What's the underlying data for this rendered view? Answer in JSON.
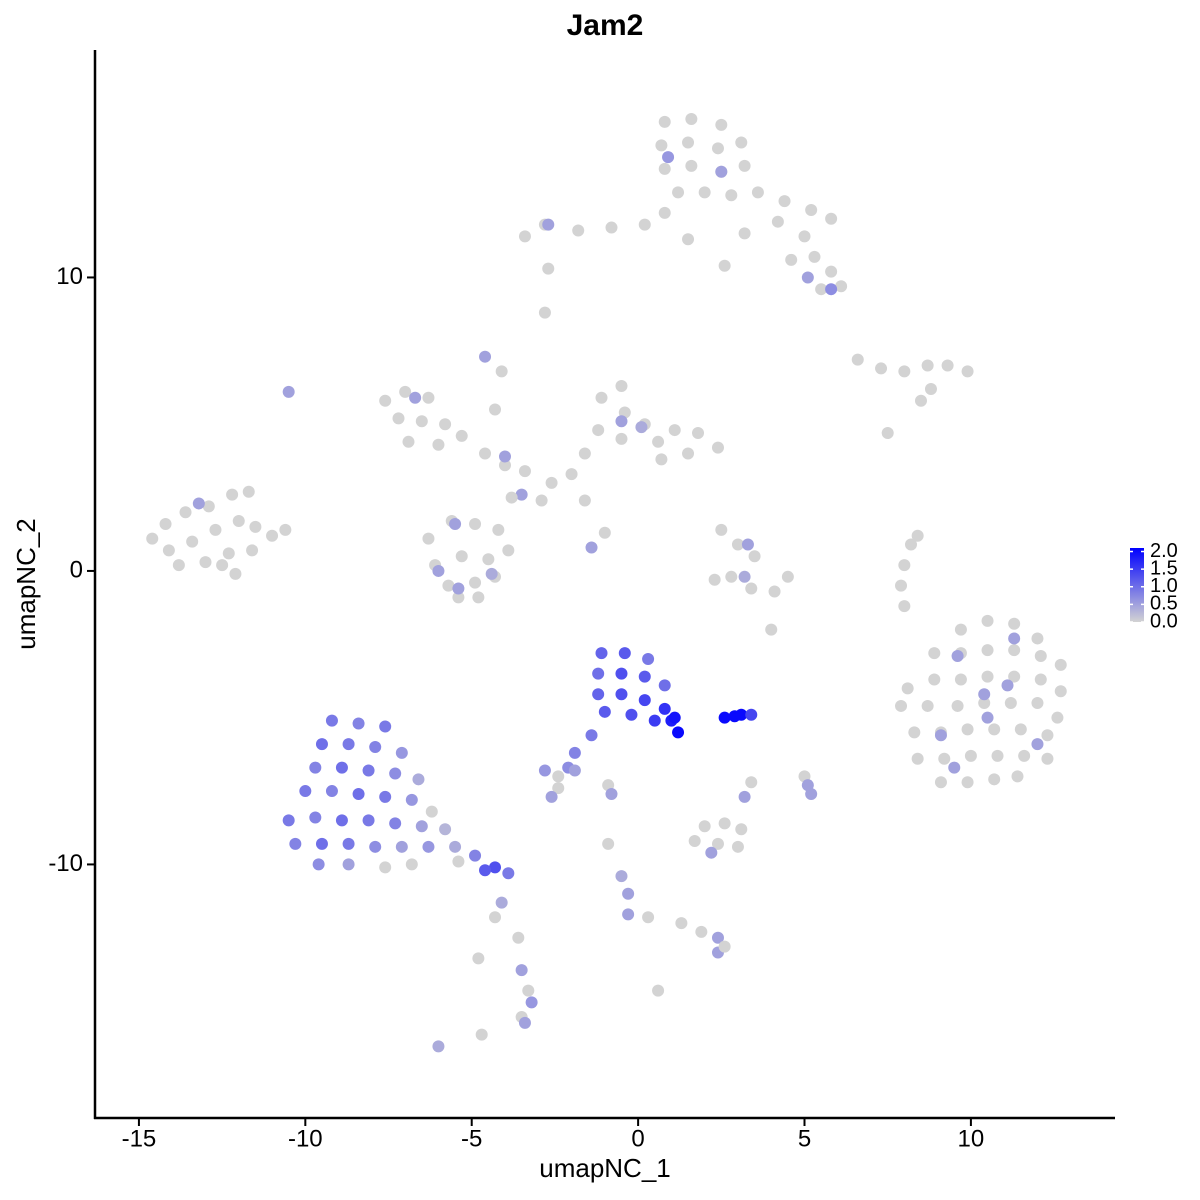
{
  "chart_data": {
    "type": "scatter",
    "title": "Jam2",
    "x_label": "umapNC_1",
    "y_label": "umapNC_2",
    "xlim": [
      -16.32,
      14.33
    ],
    "ylim": [
      -18.64,
      17.75
    ],
    "xticks": [
      -15,
      -10,
      -5,
      0,
      5,
      10
    ],
    "yticks": [
      -10,
      0,
      10
    ],
    "color_low": "#d3d3d3",
    "color_high": "#0000ff",
    "colorbar": {
      "lim": [
        0,
        2.1
      ],
      "ticks": [
        {
          "value": 0,
          "label": "0.0"
        },
        {
          "value": 0.5,
          "label": "0.5"
        },
        {
          "value": 1,
          "label": "1.0"
        },
        {
          "value": 1.5,
          "label": "1.5"
        },
        {
          "value": 2,
          "label": "2.0"
        }
      ]
    },
    "x": [
      0.8,
      1.6,
      2.5,
      3.1,
      0.7,
      1.5,
      2.4,
      3.2,
      0.8,
      1.6,
      2.5,
      1.2,
      2.0,
      2.8,
      3.6,
      4.4,
      5.2,
      5.8,
      4.2,
      5.0,
      5.3,
      5.8,
      6.1,
      5.5,
      4.6,
      0.8,
      0.2,
      -0.8,
      -1.8,
      -2.8,
      -3.4,
      -2.7,
      -2.8,
      1.5,
      2.6,
      3.2,
      0.9,
      2.5,
      -2.7,
      5.1,
      5.8,
      -7.6,
      -7.0,
      -6.3,
      -7.2,
      -6.5,
      -5.8,
      -6.9,
      -6.0,
      -5.3,
      -4.6,
      -4.0,
      -3.4,
      -4.1,
      -4.3,
      -6.7,
      -4.0,
      -4.6,
      -2.6,
      -2.9,
      -2.0,
      -1.6,
      -1.2,
      -1.1,
      -0.5,
      -0.4,
      0.2,
      -0.5,
      0.6,
      1.1,
      1.8,
      2.4,
      1.5,
      0.7,
      -1.6,
      -1.0,
      -0.5,
      0.1,
      -3.5,
      -1.4,
      -6.3,
      -5.6,
      -4.9,
      -4.2,
      -6.1,
      -5.3,
      -4.5,
      -3.9,
      -5.7,
      -4.9,
      -4.3,
      -5.4,
      -4.8,
      -3.8,
      -5.5,
      -5.4,
      -4.4,
      -6.0,
      -14.6,
      -14.2,
      -13.6,
      -12.9,
      -12.2,
      -11.7,
      -14.1,
      -13.4,
      -12.7,
      -12.0,
      -11.5,
      -11.0,
      -10.6,
      -13.8,
      -13.0,
      -12.3,
      -11.6,
      -12.1,
      -12.5,
      -13.2,
      -10.5,
      6.6,
      7.3,
      8.0,
      8.7,
      9.3,
      9.9,
      8.8,
      7.5,
      8.5,
      2.5,
      3.0,
      3.5,
      2.8,
      3.4,
      4.1,
      4.5,
      2.3,
      3.3,
      3.2,
      8.2,
      8.0,
      7.9,
      8.0,
      8.4,
      9.7,
      10.5,
      11.3,
      12.0,
      8.9,
      9.7,
      10.5,
      11.3,
      12.1,
      12.7,
      8.1,
      8.9,
      9.7,
      10.5,
      11.3,
      12.1,
      12.7,
      7.9,
      8.7,
      9.6,
      10.4,
      11.2,
      12.0,
      12.6,
      8.3,
      9.1,
      9.9,
      10.7,
      11.5,
      12.3,
      8.4,
      9.2,
      10.0,
      10.8,
      11.6,
      12.3,
      9.1,
      9.9,
      10.7,
      11.4,
      11.3,
      9.6,
      10.4,
      10.5,
      11.1,
      9.1,
      12.0,
      9.5,
      -9.2,
      -8.4,
      -7.6,
      -9.5,
      -8.7,
      -7.9,
      -7.1,
      -9.7,
      -8.9,
      -8.1,
      -7.3,
      -6.6,
      -10.0,
      -9.2,
      -8.4,
      -7.6,
      -6.8,
      -10.5,
      -9.7,
      -8.9,
      -8.1,
      -7.3,
      -6.5,
      -5.8,
      -10.3,
      -9.5,
      -8.7,
      -7.9,
      -7.1,
      -6.3,
      -5.5,
      -4.9,
      -4.3,
      -3.9,
      -4.6,
      -9.6,
      -8.7,
      -7.6,
      -6.8,
      -6.2,
      -5.4,
      -4.1,
      -4.3,
      -3.6,
      -3.5,
      -3.3,
      -3.2,
      -3.5,
      -3.4,
      -6.0,
      -4.7,
      -1.1,
      -0.4,
      0.3,
      -1.2,
      -0.5,
      0.2,
      0.8,
      -1.2,
      -0.5,
      0.2,
      0.8,
      -1.0,
      -0.2,
      0.5,
      1.0,
      1.2,
      1.1,
      -1.4,
      -1.9,
      -2.1,
      -2.4,
      2.6,
      2.9,
      3.1,
      3.4,
      -2.8,
      -2.4,
      -1.9,
      -2.6,
      -0.9,
      -0.8,
      5.0,
      5.1,
      5.2,
      3.4,
      3.2,
      4.0,
      2.0,
      2.6,
      3.1,
      1.7,
      2.4,
      3.0,
      2.2,
      -0.9,
      -0.5,
      -0.3,
      -0.3,
      0.3,
      1.3,
      1.9,
      2.4,
      2.4,
      2.6,
      0.6,
      -4.8
    ],
    "y": [
      15.3,
      15.4,
      15.2,
      14.6,
      14.5,
      14.6,
      14.4,
      13.8,
      13.7,
      13.8,
      13.6,
      12.9,
      12.9,
      12.8,
      12.9,
      12.6,
      12.3,
      12.0,
      11.9,
      11.4,
      10.7,
      10.2,
      9.7,
      9.6,
      10.6,
      12.2,
      11.8,
      11.7,
      11.6,
      11.8,
      11.4,
      10.3,
      8.8,
      11.3,
      10.4,
      11.5,
      14.1,
      13.6,
      11.8,
      10.0,
      9.6,
      5.8,
      6.1,
      5.9,
      5.2,
      5.1,
      5.0,
      4.4,
      4.3,
      4.6,
      4.0,
      3.6,
      3.4,
      6.8,
      5.5,
      5.9,
      3.9,
      7.3,
      3.0,
      2.4,
      3.3,
      4.0,
      4.8,
      5.9,
      6.3,
      5.4,
      5.0,
      4.5,
      4.4,
      4.8,
      4.7,
      4.2,
      4.0,
      3.8,
      2.4,
      1.3,
      5.1,
      4.9,
      2.6,
      0.8,
      1.1,
      1.7,
      1.6,
      1.4,
      0.2,
      0.5,
      0.4,
      0.7,
      -0.5,
      -0.4,
      -0.2,
      -0.9,
      -0.9,
      2.5,
      1.6,
      -0.6,
      -0.1,
      0.0,
      1.1,
      1.6,
      2.0,
      2.2,
      2.6,
      2.7,
      0.7,
      1.0,
      1.4,
      1.7,
      1.5,
      1.2,
      1.4,
      0.2,
      0.3,
      0.6,
      0.7,
      -0.1,
      0.2,
      2.3,
      6.1,
      7.2,
      6.9,
      6.8,
      7.0,
      7.0,
      6.8,
      6.2,
      4.7,
      5.8,
      1.4,
      0.9,
      0.5,
      -0.2,
      -0.6,
      -0.7,
      -0.2,
      -0.3,
      0.9,
      -0.2,
      0.9,
      0.2,
      -0.5,
      -1.2,
      1.2,
      -2.0,
      -1.7,
      -1.8,
      -2.3,
      -2.8,
      -2.8,
      -2.7,
      -2.7,
      -2.9,
      -3.2,
      -4.0,
      -3.7,
      -3.7,
      -3.6,
      -3.6,
      -3.7,
      -4.1,
      -4.6,
      -4.6,
      -4.6,
      -4.5,
      -4.5,
      -4.5,
      -5.0,
      -5.5,
      -5.5,
      -5.4,
      -5.4,
      -5.4,
      -5.6,
      -6.4,
      -6.4,
      -6.3,
      -6.3,
      -6.3,
      -6.4,
      -7.2,
      -7.2,
      -7.1,
      -7.0,
      -2.3,
      -2.9,
      -4.2,
      -5.0,
      -3.9,
      -5.6,
      -5.9,
      -6.7,
      -5.1,
      -5.2,
      -5.3,
      -5.9,
      -5.9,
      -6.0,
      -6.2,
      -6.7,
      -6.7,
      -6.8,
      -6.9,
      -7.1,
      -7.5,
      -7.5,
      -7.6,
      -7.7,
      -7.8,
      -8.5,
      -8.4,
      -8.5,
      -8.5,
      -8.6,
      -8.7,
      -8.8,
      -9.3,
      -9.3,
      -9.3,
      -9.4,
      -9.4,
      -9.4,
      -9.4,
      -9.7,
      -10.1,
      -10.3,
      -10.2,
      -10.0,
      -10.0,
      -10.1,
      -10.0,
      -8.2,
      -9.9,
      -11.3,
      -11.8,
      -12.5,
      -13.6,
      -14.3,
      -14.7,
      -15.2,
      -15.4,
      -16.2,
      -15.8,
      -2.8,
      -2.8,
      -3.0,
      -3.5,
      -3.5,
      -3.6,
      -3.9,
      -4.2,
      -4.2,
      -4.4,
      -4.7,
      -4.8,
      -4.9,
      -5.1,
      -5.1,
      -5.5,
      -5.0,
      -5.6,
      -6.2,
      -6.7,
      -7.4,
      -5.0,
      -4.95,
      -4.9,
      -4.9,
      -6.8,
      -7.0,
      -6.8,
      -7.7,
      -7.3,
      -7.6,
      -7.0,
      -7.3,
      -7.6,
      -7.2,
      -7.7,
      -2.0,
      -8.7,
      -8.6,
      -8.8,
      -9.2,
      -9.3,
      -9.4,
      -9.6,
      -9.3,
      -10.4,
      -11.0,
      -11.7,
      -11.8,
      -12.0,
      -12.3,
      -12.5,
      -13.0,
      -12.8,
      -14.3,
      -13.2
    ],
    "values": [
      0,
      0,
      0,
      0,
      0,
      0,
      0,
      0,
      0,
      0,
      0,
      0,
      0,
      0,
      0,
      0,
      0,
      0,
      0,
      0,
      0,
      0,
      0,
      0,
      0,
      0,
      0,
      0,
      0,
      0,
      0,
      0,
      0,
      0,
      0,
      0,
      0.6,
      0.5,
      0.5,
      0.5,
      0.7,
      0,
      0,
      0,
      0,
      0,
      0,
      0,
      0,
      0,
      0,
      0,
      0,
      0,
      0,
      0.5,
      0.5,
      0.5,
      0,
      0,
      0,
      0,
      0,
      0,
      0,
      0,
      0,
      0,
      0,
      0,
      0,
      0,
      0,
      0,
      0,
      0,
      0.5,
      0.4,
      0.5,
      0.5,
      0,
      0,
      0,
      0,
      0,
      0,
      0,
      0,
      0,
      0,
      0,
      0,
      0,
      0,
      0.5,
      0.5,
      0.4,
      0.5,
      0,
      0,
      0,
      0,
      0,
      0,
      0,
      0,
      0,
      0,
      0,
      0,
      0,
      0,
      0,
      0,
      0,
      0,
      0,
      0.5,
      0.5,
      0,
      0,
      0,
      0,
      0,
      0,
      0,
      0,
      0,
      0,
      0,
      0,
      0,
      0,
      0,
      0,
      0,
      0.5,
      0.4,
      0,
      0,
      0,
      0,
      0,
      0,
      0,
      0,
      0,
      0,
      0,
      0,
      0,
      0,
      0,
      0,
      0,
      0,
      0,
      0,
      0,
      0,
      0,
      0,
      0,
      0,
      0,
      0,
      0,
      0,
      0,
      0,
      0,
      0,
      0,
      0,
      0,
      0,
      0,
      0,
      0,
      0,
      0,
      0,
      0,
      0.5,
      0.5,
      0.5,
      0.5,
      0.5,
      0.5,
      0.5,
      0.5,
      0.9,
      0.8,
      0.9,
      1.0,
      0.9,
      0.8,
      0.6,
      0.8,
      1.0,
      0.9,
      0.7,
      0.4,
      0.9,
      0.8,
      1.0,
      0.9,
      0.6,
      0.9,
      0.8,
      1.0,
      0.9,
      0.8,
      0.5,
      0.3,
      0.8,
      1.0,
      0.9,
      0.7,
      0.5,
      0.6,
      0.4,
      0.8,
      1.3,
      0.9,
      1.2,
      0.7,
      0.5,
      0,
      0,
      0,
      0,
      0.4,
      0,
      0,
      0.5,
      0,
      0.6,
      0,
      0.5,
      0.4,
      0,
      1.1,
      1.2,
      0.9,
      1.0,
      1.3,
      1.2,
      1.0,
      1.1,
      1.3,
      1.4,
      1.6,
      1.2,
      1.3,
      1.5,
      1.8,
      2.0,
      1.9,
      0.9,
      0.8,
      0.7,
      0,
      2.0,
      2.0,
      2.0,
      1.4,
      0.6,
      0,
      0.5,
      0.5,
      0,
      0.5,
      0,
      0.5,
      0.5,
      0,
      0.5,
      0,
      0,
      0,
      0,
      0,
      0,
      0,
      0.5,
      0,
      0.4,
      0.5,
      0.5,
      0,
      0,
      0,
      0.5,
      0.5,
      0,
      0,
      0
    ]
  }
}
